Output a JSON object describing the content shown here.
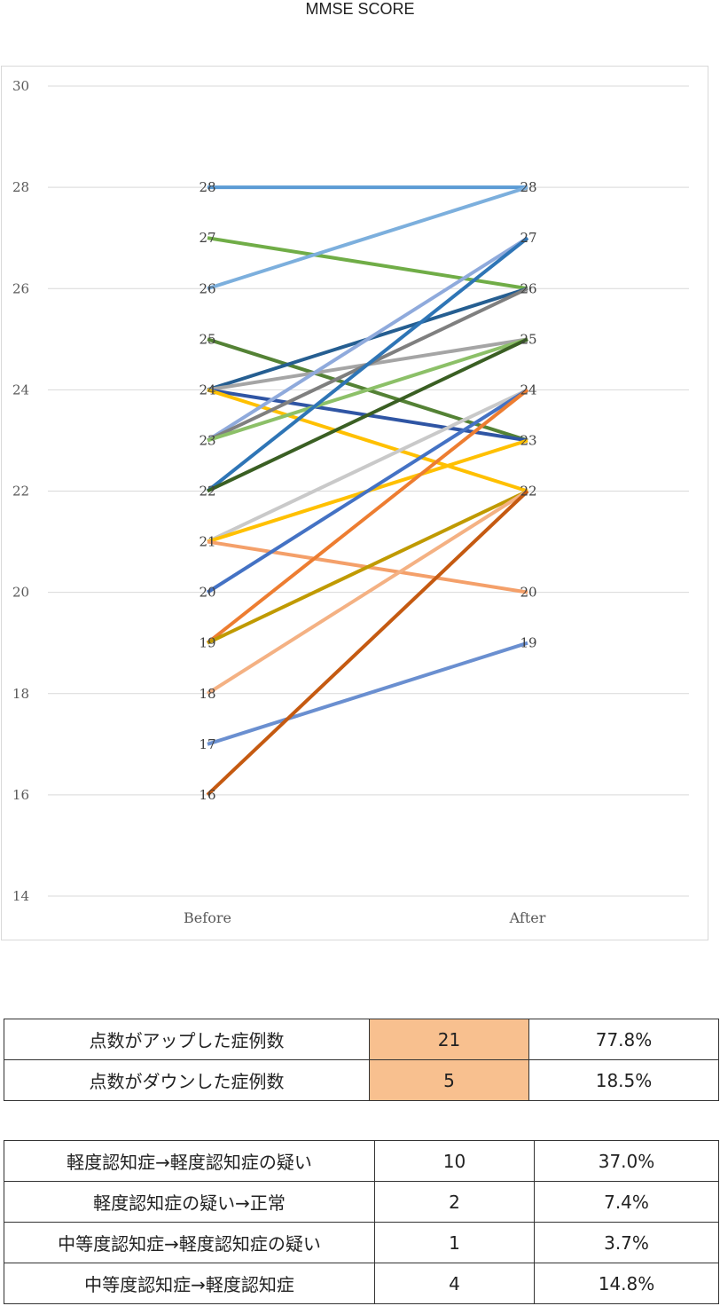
{
  "chart_data": {
    "type": "line",
    "title": "MMSE SCORE",
    "categories": [
      "Before",
      "After"
    ],
    "ylim": [
      14,
      30
    ],
    "yticks": [
      14,
      16,
      18,
      20,
      22,
      24,
      26,
      28,
      30
    ],
    "grid": true,
    "series": [
      {
        "values": [
          28,
          28
        ],
        "color": "#5b9bd5"
      },
      {
        "values": [
          27,
          26
        ],
        "color": "#70ad47"
      },
      {
        "values": [
          26,
          28
        ],
        "color": "#7cafdd"
      },
      {
        "values": [
          25,
          23
        ],
        "color": "#548235"
      },
      {
        "values": [
          24,
          26
        ],
        "color": "#255e91"
      },
      {
        "values": [
          24,
          25
        ],
        "color": "#a5a5a5"
      },
      {
        "values": [
          24,
          23
        ],
        "color": "#2f55a4"
      },
      {
        "values": [
          24,
          22
        ],
        "color": "#ffc000"
      },
      {
        "values": [
          23,
          27
        ],
        "color": "#8faadc"
      },
      {
        "values": [
          23,
          26
        ],
        "color": "#7f7f7f"
      },
      {
        "values": [
          23,
          25
        ],
        "color": "#8cc068"
      },
      {
        "values": [
          22,
          27
        ],
        "color": "#2e75b6"
      },
      {
        "values": [
          22,
          25
        ],
        "color": "#3a5f23"
      },
      {
        "values": [
          21,
          24
        ],
        "color": "#c9c9c9"
      },
      {
        "values": [
          21,
          23
        ],
        "color": "#ffc000"
      },
      {
        "values": [
          21,
          20
        ],
        "color": "#f4a06a"
      },
      {
        "values": [
          20,
          24
        ],
        "color": "#4472c4"
      },
      {
        "values": [
          19,
          24
        ],
        "color": "#ed7d31"
      },
      {
        "values": [
          19,
          22
        ],
        "color": "#c09a00"
      },
      {
        "values": [
          18,
          22
        ],
        "color": "#f4b183"
      },
      {
        "values": [
          17,
          19
        ],
        "color": "#6a8fd0"
      },
      {
        "values": [
          16,
          22
        ],
        "color": "#c55a11"
      }
    ],
    "before_labels": [
      28,
      27,
      26,
      25,
      24,
      23,
      22,
      21,
      20,
      19,
      18,
      17,
      16
    ],
    "after_labels": [
      28,
      27,
      26,
      25,
      24,
      23,
      22,
      20,
      19
    ]
  },
  "summary_table": {
    "rows": [
      {
        "label": "点数がアップした症例数",
        "count": "21",
        "percent": "77.8%"
      },
      {
        "label": "点数がダウンした症例数",
        "count": "5",
        "percent": "18.5%"
      }
    ],
    "highlight_color": "#f8c08f"
  },
  "transition_table": {
    "rows": [
      {
        "label": "軽度認知症→軽度認知症の疑い",
        "count": "10",
        "percent": "37.0%"
      },
      {
        "label": "軽度認知症の疑い→正常",
        "count": "2",
        "percent": "7.4%"
      },
      {
        "label": "中等度認知症→軽度認知症の疑い",
        "count": "1",
        "percent": "3.7%"
      },
      {
        "label": "中等度認知症→軽度認知症",
        "count": "4",
        "percent": "14.8%"
      }
    ]
  }
}
